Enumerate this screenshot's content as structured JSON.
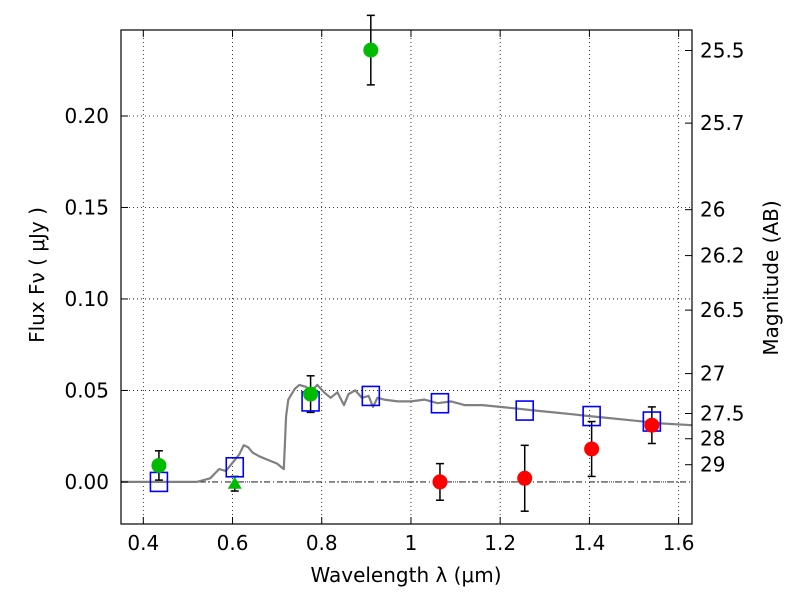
{
  "chart_data": {
    "type": "scatter",
    "xlabel": "Wavelength  λ (μm)",
    "ylabel": "Flux  Fν  ( μJy )",
    "y2label": "Magnitude (AB)",
    "xlim": [
      0.35,
      1.63
    ],
    "ylim": [
      -0.023,
      0.247
    ],
    "x_ticks": [
      0.4,
      0.6,
      0.8,
      1.0,
      1.2,
      1.4,
      1.6
    ],
    "x_tick_labels": [
      "0.4",
      "0.6",
      "0.8",
      "1",
      "1.2",
      "1.4",
      "1.6"
    ],
    "y_ticks": [
      0.0,
      0.05,
      0.1,
      0.15,
      0.2
    ],
    "y_tick_labels": [
      "0.00",
      "0.05",
      "0.10",
      "0.15",
      "0.20"
    ],
    "mag_ticks": [
      {
        "label": "25.5",
        "flux": 0.2358
      },
      {
        "label": "25.7",
        "flux": 0.1961
      },
      {
        "label": "26",
        "flux": 0.1488
      },
      {
        "label": "26.2",
        "flux": 0.1237
      },
      {
        "label": "26.5",
        "flux": 0.0939
      },
      {
        "label": "27",
        "flux": 0.0592
      },
      {
        "label": "27.5",
        "flux": 0.0374
      },
      {
        "label": "28",
        "flux": 0.0236
      },
      {
        "label": "29",
        "flux": 0.0094
      }
    ],
    "grid": true,
    "series": [
      {
        "marker": "line",
        "color": "#808080",
        "points": [
          [
            0.35,
            0.0
          ],
          [
            0.52,
            0.0
          ],
          [
            0.55,
            0.002
          ],
          [
            0.57,
            0.007
          ],
          [
            0.585,
            0.006
          ],
          [
            0.595,
            0.009
          ],
          [
            0.605,
            0.012
          ],
          [
            0.615,
            0.015
          ],
          [
            0.625,
            0.02
          ],
          [
            0.635,
            0.019
          ],
          [
            0.645,
            0.016
          ],
          [
            0.66,
            0.014
          ],
          [
            0.68,
            0.012
          ],
          [
            0.7,
            0.01
          ],
          [
            0.715,
            0.007
          ],
          [
            0.72,
            0.036
          ],
          [
            0.725,
            0.045
          ],
          [
            0.74,
            0.051
          ],
          [
            0.75,
            0.053
          ],
          [
            0.765,
            0.052
          ],
          [
            0.775,
            0.049
          ],
          [
            0.79,
            0.053
          ],
          [
            0.805,
            0.049
          ],
          [
            0.82,
            0.046
          ],
          [
            0.835,
            0.049
          ],
          [
            0.85,
            0.042
          ],
          [
            0.86,
            0.048
          ],
          [
            0.875,
            0.05
          ],
          [
            0.89,
            0.046
          ],
          [
            0.905,
            0.047
          ],
          [
            0.915,
            0.041
          ],
          [
            0.925,
            0.046
          ],
          [
            0.94,
            0.045
          ],
          [
            0.97,
            0.044
          ],
          [
            1.0,
            0.044
          ],
          [
            1.03,
            0.045
          ],
          [
            1.06,
            0.043
          ],
          [
            1.09,
            0.044
          ],
          [
            1.12,
            0.042
          ],
          [
            1.16,
            0.042
          ],
          [
            1.2,
            0.041
          ],
          [
            1.24,
            0.04
          ],
          [
            1.28,
            0.039
          ],
          [
            1.32,
            0.038
          ],
          [
            1.36,
            0.037
          ],
          [
            1.4,
            0.036
          ],
          [
            1.44,
            0.035
          ],
          [
            1.48,
            0.034
          ],
          [
            1.52,
            0.033
          ],
          [
            1.56,
            0.032
          ],
          [
            1.63,
            0.031
          ]
        ]
      },
      {
        "marker": "square",
        "color": "#0000ff",
        "points": [
          [
            0.435,
            0.0
          ],
          [
            0.605,
            0.008
          ],
          [
            0.775,
            0.044
          ],
          [
            0.91,
            0.047
          ],
          [
            1.065,
            0.043
          ],
          [
            1.255,
            0.039
          ],
          [
            1.405,
            0.036
          ],
          [
            1.54,
            0.033
          ]
        ]
      },
      {
        "marker": "circle",
        "color": "#00bb00",
        "points": [
          {
            "x": 0.435,
            "y": 0.009,
            "err": 0.008
          },
          {
            "x": 0.775,
            "y": 0.048,
            "err": 0.01
          },
          {
            "x": 0.91,
            "y": 0.236,
            "err": 0.019
          }
        ]
      },
      {
        "marker": "triangle",
        "color": "#00bb00",
        "points": [
          {
            "x": 0.605,
            "y": -0.001,
            "err": 0.004
          }
        ]
      },
      {
        "marker": "circle",
        "color": "#ff0000",
        "points": [
          {
            "x": 1.065,
            "y": 0.0,
            "err": 0.01
          },
          {
            "x": 1.255,
            "y": 0.002,
            "err": 0.018
          },
          {
            "x": 1.405,
            "y": 0.018,
            "err": 0.015
          },
          {
            "x": 1.54,
            "y": 0.031,
            "err": 0.01
          }
        ]
      }
    ]
  }
}
